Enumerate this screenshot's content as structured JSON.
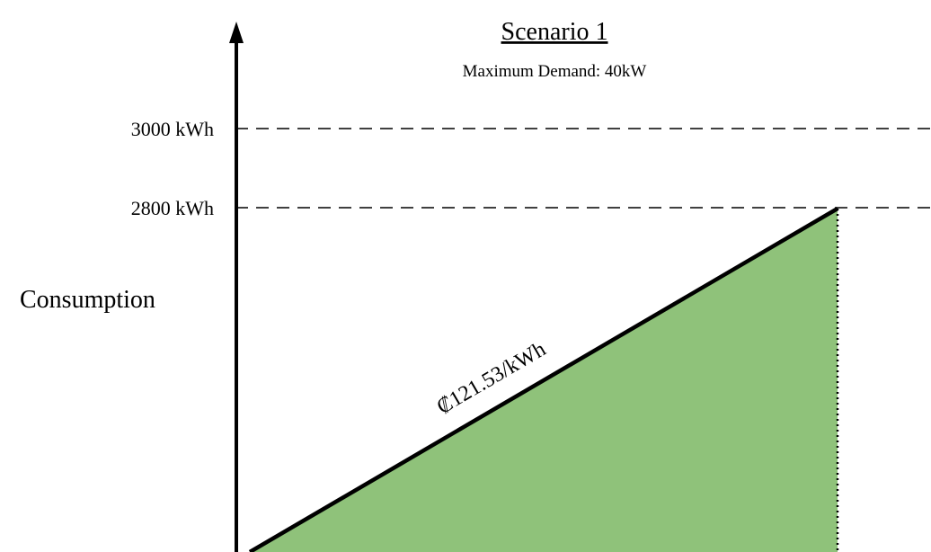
{
  "diagram": {
    "title": "Scenario 1",
    "subtitle": "Maximum Demand: 40kW",
    "y_axis_label": "Consumption",
    "reference_lines": [
      {
        "label": "3000 kWh",
        "value": 3000
      },
      {
        "label": "2800 kWh",
        "value": 2800
      }
    ],
    "rate_label": "₡121.53/kWh",
    "fill_color": "#8fc27a",
    "line_color": "#000000"
  }
}
